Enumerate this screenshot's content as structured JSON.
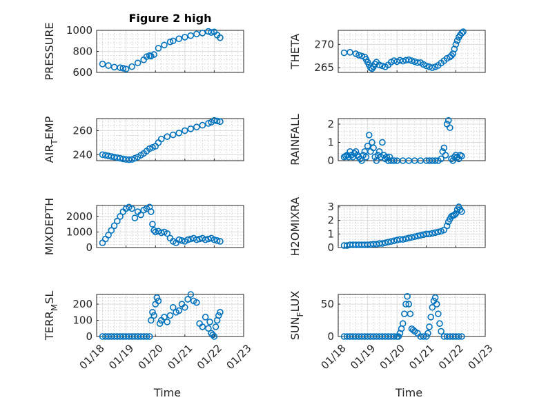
{
  "figure": {
    "title": "Figure 2 high",
    "marker_color": "#0072BD",
    "grid": true,
    "minor_grid": true
  },
  "chart_data": [
    {
      "type": "scatter",
      "id": "pressure",
      "title": "Figure 2 high",
      "ylabel": "PRESSURE",
      "ylim": [
        600,
        1000
      ],
      "yticks": [
        600,
        800,
        1000
      ],
      "xlim": [
        0,
        5
      ],
      "xticks": [
        0,
        1,
        2,
        3,
        4,
        5
      ],
      "xticklabels": [
        "01/18",
        "01/19",
        "01/20",
        "01/21",
        "01/22",
        "01/23"
      ],
      "xlabel": "",
      "points_x": [
        0.2,
        0.4,
        0.6,
        0.8,
        0.9,
        1.0,
        1.2,
        1.4,
        1.6,
        1.7,
        1.8,
        1.85,
        1.95,
        2.1,
        2.3,
        2.5,
        2.6,
        2.8,
        3.0,
        3.2,
        3.4,
        3.6,
        3.8,
        3.9,
        4.0,
        4.1,
        4.2
      ],
      "points_y": [
        680,
        665,
        650,
        645,
        640,
        632,
        655,
        690,
        720,
        750,
        760,
        755,
        770,
        830,
        860,
        890,
        900,
        920,
        935,
        950,
        965,
        975,
        990,
        980,
        985,
        955,
        930
      ]
    },
    {
      "type": "scatter",
      "id": "theta",
      "ylabel": "THETA",
      "ylim": [
        264,
        273
      ],
      "yticks": [
        265,
        270
      ],
      "xlim": [
        0,
        5
      ],
      "xticks": [
        0,
        1,
        2,
        3,
        4,
        5
      ],
      "xticklabels": [
        "01/18",
        "01/19",
        "01/20",
        "01/21",
        "01/22",
        "01/23"
      ],
      "xlabel": "",
      "points_x": [
        0.2,
        0.4,
        0.6,
        0.7,
        0.8,
        0.9,
        0.95,
        1.0,
        1.05,
        1.1,
        1.15,
        1.2,
        1.25,
        1.3,
        1.4,
        1.5,
        1.6,
        1.7,
        1.8,
        1.9,
        2.0,
        2.1,
        2.2,
        2.3,
        2.4,
        2.5,
        2.6,
        2.7,
        2.8,
        2.9,
        3.0,
        3.1,
        3.2,
        3.3,
        3.4,
        3.5,
        3.6,
        3.7,
        3.8,
        3.85,
        3.9,
        3.95,
        4.0,
        4.05,
        4.1,
        4.15,
        4.2,
        4.25
      ],
      "points_y": [
        268.2,
        268.3,
        268.0,
        267.7,
        267.5,
        267.3,
        266.8,
        266.2,
        265.6,
        265.0,
        264.8,
        265.2,
        265.8,
        266.2,
        265.6,
        265.4,
        265.2,
        265.6,
        266.2,
        266.5,
        266.3,
        266.6,
        266.4,
        266.6,
        266.7,
        266.5,
        266.3,
        266.1,
        266.1,
        265.7,
        265.4,
        265.2,
        265.0,
        265.2,
        265.5,
        266.0,
        266.5,
        267.0,
        267.3,
        267.6,
        268.0,
        269.0,
        270.0,
        270.8,
        271.5,
        272.0,
        272.4,
        272.7
      ]
    },
    {
      "type": "scatter",
      "id": "air_temp",
      "ylabel_main": "AIR",
      "ylabel_sub": "T",
      "ylabel_tail": "EMP",
      "ylim": [
        235,
        270
      ],
      "yticks": [
        240,
        260
      ],
      "xlim": [
        0,
        5
      ],
      "xticks": [
        0,
        1,
        2,
        3,
        4,
        5
      ],
      "xticklabels": [
        "01/18",
        "01/19",
        "01/20",
        "01/21",
        "01/22",
        "01/23"
      ],
      "xlabel": "",
      "points_x": [
        0.2,
        0.3,
        0.4,
        0.5,
        0.6,
        0.7,
        0.8,
        0.9,
        1.0,
        1.1,
        1.2,
        1.3,
        1.4,
        1.5,
        1.6,
        1.7,
        1.8,
        1.9,
        2.0,
        2.1,
        2.2,
        2.4,
        2.6,
        2.8,
        3.0,
        3.2,
        3.4,
        3.6,
        3.8,
        3.9,
        4.0,
        4.1,
        4.2
      ],
      "points_y": [
        240,
        239.5,
        239,
        238.5,
        238,
        237.5,
        237,
        236.5,
        236,
        235.8,
        236,
        237,
        238,
        239.5,
        241,
        243,
        245,
        246,
        247,
        250,
        253,
        255,
        256.5,
        258,
        260,
        261.5,
        263,
        264.5,
        266,
        267,
        268.5,
        268,
        267.5
      ]
    },
    {
      "type": "scatter",
      "id": "rainfall",
      "ylabel": "RAINFALL",
      "ylim": [
        0,
        2.3
      ],
      "yticks": [
        0,
        1,
        2
      ],
      "xlim": [
        0,
        5
      ],
      "xticks": [
        0,
        1,
        2,
        3,
        4,
        5
      ],
      "xticklabels": [
        "01/18",
        "01/19",
        "01/20",
        "01/21",
        "01/22",
        "01/23"
      ],
      "xlabel": "",
      "points_x": [
        0.2,
        0.25,
        0.3,
        0.35,
        0.4,
        0.45,
        0.5,
        0.55,
        0.6,
        0.65,
        0.7,
        0.75,
        0.8,
        0.85,
        0.9,
        0.95,
        1.0,
        1.05,
        1.1,
        1.15,
        1.2,
        1.25,
        1.3,
        1.35,
        1.4,
        1.45,
        1.5,
        1.55,
        1.6,
        1.65,
        1.7,
        1.75,
        1.8,
        1.9,
        2.0,
        2.2,
        2.4,
        2.6,
        2.8,
        3.0,
        3.1,
        3.2,
        3.3,
        3.4,
        3.5,
        3.55,
        3.6,
        3.65,
        3.7,
        3.75,
        3.8,
        3.85,
        3.9,
        3.95,
        4.0,
        4.05,
        4.1,
        4.15,
        4.2
      ],
      "points_y": [
        0.2,
        0.25,
        0.3,
        0.2,
        0.5,
        0.3,
        0.2,
        0.4,
        0.5,
        0.3,
        0.2,
        0.1,
        0,
        0.3,
        0.5,
        0.2,
        0.8,
        1.4,
        0.5,
        1.0,
        0.7,
        0.2,
        0,
        0.3,
        0.5,
        0.2,
        1.0,
        0.3,
        0.1,
        0.2,
        0,
        0.2,
        0,
        0,
        0,
        0,
        0,
        0,
        0,
        0,
        0,
        0,
        0,
        0,
        0.1,
        0.5,
        0.7,
        0.3,
        2.0,
        2.2,
        1.8,
        0.1,
        0,
        0.2,
        0.3,
        0.2,
        0.1,
        0.3,
        0.25
      ]
    },
    {
      "type": "scatter",
      "id": "mixdepth",
      "ylabel": "MIXDEPTH",
      "ylim": [
        0,
        2700
      ],
      "yticks": [
        0,
        1000,
        2000
      ],
      "xlim": [
        0,
        5
      ],
      "xticks": [
        0,
        1,
        2,
        3,
        4,
        5
      ],
      "xticklabels": [
        "01/18",
        "01/19",
        "01/20",
        "01/21",
        "01/22",
        "01/23"
      ],
      "xlabel": "",
      "points_x": [
        0.2,
        0.3,
        0.4,
        0.5,
        0.6,
        0.7,
        0.8,
        0.9,
        1.0,
        1.1,
        1.2,
        1.3,
        1.4,
        1.5,
        1.6,
        1.7,
        1.8,
        1.85,
        1.9,
        1.95,
        2.0,
        2.1,
        2.2,
        2.3,
        2.4,
        2.5,
        2.6,
        2.7,
        2.8,
        2.9,
        3.0,
        3.1,
        3.2,
        3.3,
        3.4,
        3.5,
        3.6,
        3.7,
        3.8,
        3.9,
        4.0,
        4.1,
        4.2
      ],
      "points_y": [
        300,
        550,
        800,
        1100,
        1400,
        1700,
        2000,
        2300,
        2500,
        2600,
        2500,
        1900,
        2300,
        2100,
        2400,
        2500,
        2600,
        2300,
        1500,
        1100,
        1000,
        1050,
        950,
        1000,
        900,
        600,
        400,
        300,
        500,
        450,
        400,
        500,
        550,
        600,
        500,
        550,
        600,
        500,
        550,
        600,
        500,
        450,
        400
      ]
    },
    {
      "type": "scatter",
      "id": "h2omixra",
      "ylabel": "H2OMIXRA",
      "ylim": [
        0,
        3.1
      ],
      "yticks": [
        0,
        1,
        2,
        3
      ],
      "xlim": [
        0,
        5
      ],
      "xticks": [
        0,
        1,
        2,
        3,
        4,
        5
      ],
      "xticklabels": [
        "01/18",
        "01/19",
        "01/20",
        "01/21",
        "01/22",
        "01/23"
      ],
      "xlabel": "",
      "points_x": [
        0.2,
        0.3,
        0.4,
        0.5,
        0.6,
        0.7,
        0.8,
        0.9,
        1.0,
        1.1,
        1.2,
        1.3,
        1.4,
        1.5,
        1.6,
        1.7,
        1.8,
        1.9,
        2.0,
        2.1,
        2.2,
        2.3,
        2.4,
        2.5,
        2.6,
        2.7,
        2.8,
        2.9,
        3.0,
        3.1,
        3.2,
        3.3,
        3.4,
        3.5,
        3.6,
        3.7,
        3.75,
        3.8,
        3.85,
        3.9,
        3.95,
        4.0,
        4.05,
        4.1,
        4.15,
        4.2
      ],
      "points_y": [
        0.15,
        0.15,
        0.2,
        0.2,
        0.2,
        0.2,
        0.2,
        0.2,
        0.2,
        0.22,
        0.25,
        0.25,
        0.3,
        0.3,
        0.35,
        0.4,
        0.45,
        0.5,
        0.55,
        0.6,
        0.6,
        0.65,
        0.7,
        0.75,
        0.8,
        0.85,
        0.9,
        0.95,
        1.0,
        1.0,
        1.05,
        1.1,
        1.15,
        1.2,
        1.3,
        1.6,
        1.9,
        2.1,
        2.3,
        2.35,
        2.4,
        2.5,
        2.8,
        3.0,
        2.8,
        2.65
      ]
    },
    {
      "type": "scatter",
      "id": "terr_msl",
      "ylabel_main": "TERR",
      "ylabel_sub": "M",
      "ylabel_tail": "SL",
      "ylim": [
        0,
        260
      ],
      "yticks": [
        0,
        100,
        200
      ],
      "xlim": [
        0,
        5
      ],
      "xticks": [
        0,
        1,
        2,
        3,
        4,
        5
      ],
      "xticklabels": [
        "01/18",
        "01/19",
        "01/20",
        "01/21",
        "01/22",
        "01/23"
      ],
      "xlabel": "Time",
      "points_x": [
        0.2,
        0.3,
        0.4,
        0.5,
        0.6,
        0.7,
        0.8,
        0.9,
        1.0,
        1.1,
        1.2,
        1.3,
        1.4,
        1.5,
        1.6,
        1.7,
        1.8,
        1.85,
        1.9,
        1.95,
        2.0,
        2.05,
        2.1,
        2.15,
        2.2,
        2.3,
        2.4,
        2.5,
        2.6,
        2.7,
        2.8,
        2.9,
        3.0,
        3.1,
        3.2,
        3.3,
        3.4,
        3.5,
        3.6,
        3.7,
        3.8,
        3.85,
        3.9,
        3.95,
        4.0,
        4.05,
        4.1,
        4.15,
        4.2
      ],
      "points_y": [
        0,
        0,
        0,
        0,
        0,
        0,
        0,
        0,
        0,
        0,
        0,
        0,
        0,
        0,
        0,
        0,
        0,
        100,
        150,
        130,
        200,
        240,
        220,
        80,
        100,
        120,
        90,
        130,
        180,
        150,
        160,
        200,
        180,
        230,
        260,
        220,
        210,
        80,
        60,
        120,
        50,
        90,
        20,
        10,
        0,
        60,
        100,
        130,
        150
      ]
    },
    {
      "type": "scatter",
      "id": "sun_flux",
      "ylabel_main": "SUN",
      "ylabel_sub": "F",
      "ylabel_tail": "LUX",
      "ylim": [
        0,
        65
      ],
      "yticks": [
        0,
        50
      ],
      "xlim": [
        0,
        5
      ],
      "xticks": [
        0,
        1,
        2,
        3,
        4,
        5
      ],
      "xticklabels": [
        "01/18",
        "01/19",
        "01/20",
        "01/21",
        "01/22",
        "01/23"
      ],
      "xlabel": "Time",
      "points_x": [
        0.2,
        0.3,
        0.4,
        0.5,
        0.6,
        0.7,
        0.8,
        0.9,
        1.0,
        1.1,
        1.2,
        1.3,
        1.4,
        1.5,
        1.6,
        1.7,
        1.8,
        1.9,
        2.0,
        2.05,
        2.1,
        2.15,
        2.2,
        2.25,
        2.3,
        2.35,
        2.4,
        2.45,
        2.5,
        2.55,
        2.6,
        2.7,
        2.8,
        2.9,
        3.0,
        3.05,
        3.1,
        3.15,
        3.2,
        3.25,
        3.3,
        3.35,
        3.4,
        3.45,
        3.5,
        3.6,
        3.7,
        3.8,
        3.9,
        4.0,
        4.1,
        4.2
      ],
      "points_y": [
        0,
        0,
        0,
        0,
        0,
        0,
        0,
        0,
        0,
        0,
        0,
        0,
        0,
        0,
        0,
        0,
        0,
        0,
        0,
        0,
        5,
        12,
        20,
        35,
        50,
        62,
        50,
        35,
        12,
        10,
        8,
        5,
        0,
        0,
        0,
        5,
        15,
        30,
        45,
        55,
        60,
        50,
        35,
        20,
        8,
        0,
        0,
        0,
        0,
        0,
        0,
        0
      ]
    }
  ]
}
